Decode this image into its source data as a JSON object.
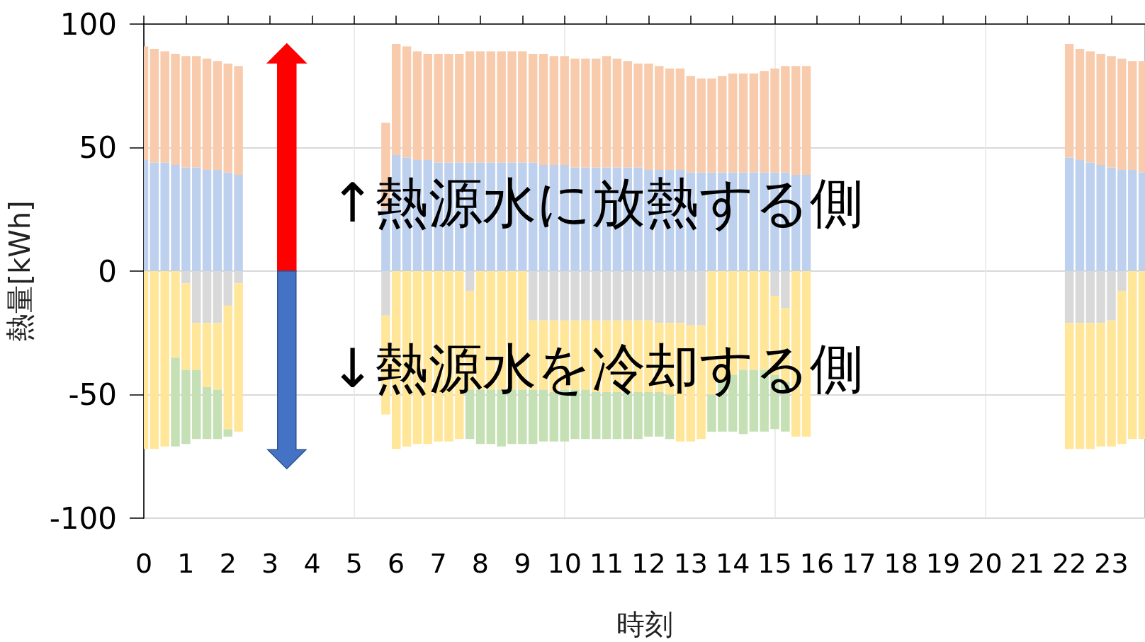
{
  "chart_data": {
    "type": "bar",
    "stacked": true,
    "xlabel": "時刻",
    "ylabel": "熱量[kWh]",
    "annotations": [
      "↑熱源水に放熱する側",
      "↓熱源水を冷却する側"
    ],
    "x": [
      0,
      0.25,
      0.5,
      0.75,
      1,
      1.25,
      1.5,
      1.75,
      2,
      2.25,
      5.75,
      6,
      6.25,
      6.5,
      6.75,
      7,
      7.25,
      7.5,
      7.75,
      8,
      8.25,
      8.5,
      8.75,
      9,
      9.25,
      9.5,
      9.75,
      10,
      10.25,
      10.5,
      10.75,
      11,
      11.25,
      11.5,
      11.75,
      12,
      12.25,
      12.5,
      12.75,
      13,
      13.25,
      13.5,
      13.75,
      14,
      14.25,
      14.5,
      14.75,
      15,
      15.25,
      15.5,
      15.75,
      22,
      22.25,
      22.5,
      22.75,
      23,
      23.25,
      23.5,
      23.75
    ],
    "series": [
      {
        "color": "#bdd0ee",
        "values": [
          45,
          44,
          44,
          43,
          42,
          42,
          41,
          41,
          40,
          39,
          25,
          47,
          46,
          45,
          45,
          44,
          44,
          44,
          44,
          44,
          44,
          44,
          44,
          44,
          44,
          43,
          43,
          43,
          42,
          42,
          42,
          42,
          42,
          42,
          42,
          41,
          41,
          41,
          41,
          40,
          40,
          40,
          40,
          40,
          40,
          40,
          40,
          40,
          40,
          39,
          39,
          46,
          45,
          44,
          43,
          42,
          41,
          41,
          40
        ]
      },
      {
        "color": "#f8cbad",
        "values": [
          46,
          46,
          45,
          45,
          45,
          45,
          45,
          44,
          44,
          44,
          35,
          45,
          45,
          44,
          43,
          44,
          44,
          44,
          45,
          45,
          45,
          45,
          45,
          45,
          44,
          45,
          44,
          44,
          44,
          44,
          44,
          45,
          44,
          43,
          42,
          43,
          42,
          41,
          41,
          39,
          38,
          38,
          39,
          40,
          40,
          40,
          41,
          42,
          43,
          44,
          44,
          46,
          45,
          45,
          45,
          45,
          45,
          44,
          45
        ]
      },
      {
        "color": "#d9d9d9",
        "values": [
          0,
          0,
          0,
          0,
          -5,
          -21,
          -21,
          -21,
          -14,
          -5,
          -18,
          0,
          0,
          0,
          0,
          0,
          0,
          0,
          -8,
          0,
          0,
          0,
          0,
          0,
          -20,
          -20,
          -20,
          -20,
          -20,
          -20,
          -20,
          -20,
          -20,
          -20,
          -20,
          -20,
          -21,
          -21,
          -21,
          -22,
          -22,
          0,
          0,
          0,
          0,
          0,
          0,
          -10,
          -15,
          0,
          0,
          -21,
          -21,
          -21,
          -21,
          -20,
          -8,
          0,
          0
        ]
      },
      {
        "color": "#ffe699",
        "values": [
          -72,
          -72,
          -71,
          -35,
          -35,
          -19,
          -26,
          -27,
          -50,
          -60,
          -40,
          -72,
          -71,
          -70,
          -70,
          -69,
          -69,
          -68,
          -40,
          -48,
          -48,
          -48,
          -48,
          -48,
          -28,
          -28,
          -29,
          -28,
          -28,
          -28,
          -29,
          -29,
          -29,
          -29,
          -29,
          -29,
          -28,
          -29,
          -48,
          -47,
          -46,
          -50,
          -45,
          -42,
          -40,
          -40,
          -40,
          -32,
          -30,
          -67,
          -67,
          -51,
          -51,
          -51,
          -50,
          -51,
          -62,
          -68,
          -68
        ]
      },
      {
        "color": "#c5e0b4",
        "values": [
          0,
          0,
          0,
          -36,
          -30,
          -28,
          -21,
          -20,
          -3,
          0,
          0,
          0,
          0,
          0,
          0,
          0,
          0,
          0,
          -20,
          -22,
          -22,
          -23,
          -22,
          -22,
          -22,
          -21,
          -20,
          -21,
          -20,
          -20,
          -19,
          -19,
          -19,
          -19,
          -19,
          -18,
          -18,
          -18,
          0,
          0,
          0,
          -15,
          -20,
          -23,
          -26,
          -25,
          -25,
          -22,
          -20,
          0,
          0,
          0,
          0,
          0,
          0,
          0,
          0,
          0,
          0
        ]
      }
    ],
    "xlim": [
      0,
      23.8
    ],
    "xticks": [
      0,
      1,
      2,
      3,
      4,
      5,
      6,
      7,
      8,
      9,
      10,
      11,
      12,
      13,
      14,
      15,
      16,
      17,
      18,
      19,
      20,
      21,
      22,
      23
    ],
    "ylim": [
      -100,
      100
    ],
    "yticks": [
      -100,
      -50,
      0,
      50,
      100
    ],
    "grid": true
  }
}
